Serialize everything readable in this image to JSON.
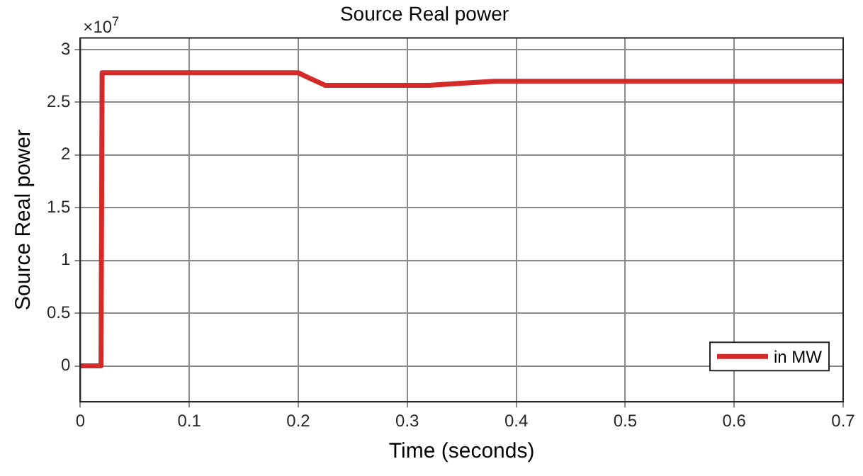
{
  "chart_data": {
    "type": "line",
    "title": "Source Real power",
    "xlabel": "Time (seconds)",
    "ylabel": "Source Real power",
    "annotations": [
      "×10$^{7}$"
    ],
    "series": [
      {
        "name": "in MW",
        "color": "#d42a2a",
        "x": [
          0,
          0.019,
          0.02,
          0.2,
          0.21,
          0.225,
          0.32,
          0.35,
          0.38,
          0.7
        ],
        "values": [
          0,
          0,
          2.78,
          2.78,
          2.73,
          2.66,
          2.66,
          2.68,
          2.7,
          2.7
        ]
      }
    ],
    "xlim": [
      0,
      0.7
    ],
    "xticks": [
      0,
      0.1,
      0.2,
      0.3,
      0.4,
      0.5,
      0.6,
      0.7
    ],
    "ylim": [
      -0.34,
      3.11
    ],
    "yticks": [
      0,
      0.5,
      1,
      1.5,
      2,
      2.5,
      3
    ],
    "grid": true,
    "legend": "bottom right",
    "marker": "none",
    "line_style": "solid"
  }
}
